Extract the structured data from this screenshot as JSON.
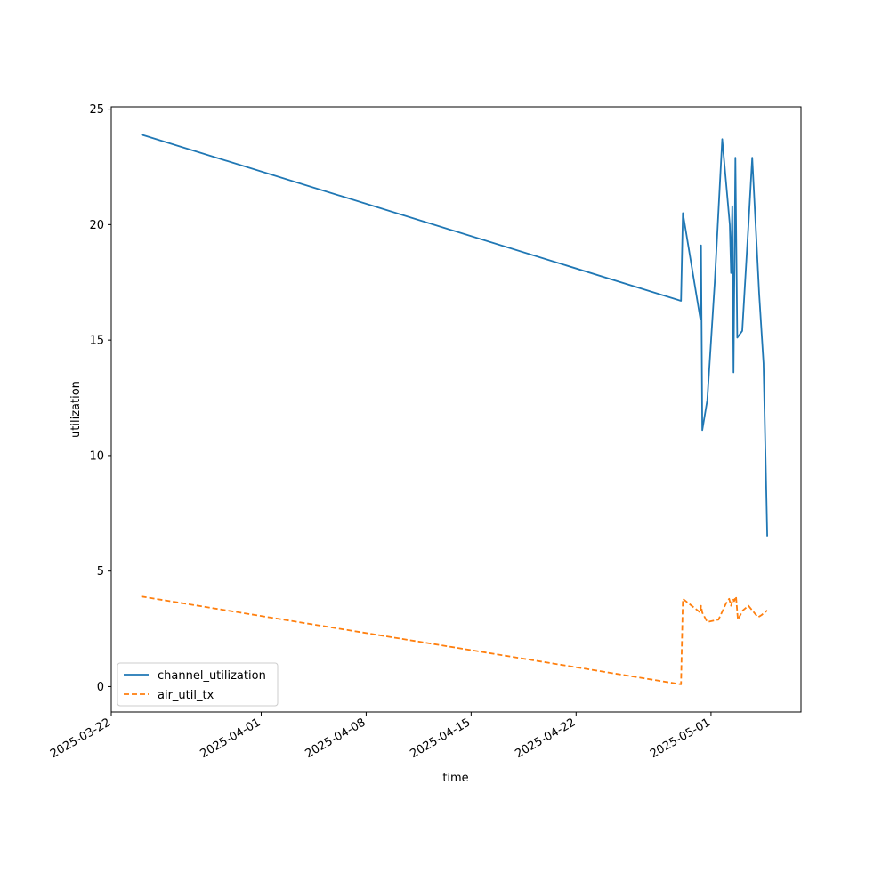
{
  "chart_data": {
    "type": "line",
    "xlabel": "time",
    "ylabel": "utilization",
    "xlim": [
      "2025-03-22T00:00",
      "2025-05-07T00:00"
    ],
    "ylim": [
      -1.1,
      25.1
    ],
    "x_ticks": [
      "2025-03-22",
      "2025-04-01",
      "2025-04-08",
      "2025-04-15",
      "2025-04-22",
      "2025-05-01"
    ],
    "y_ticks": [
      0,
      5,
      10,
      15,
      20,
      25
    ],
    "grid": false,
    "legend_position": "lower-left",
    "series": [
      {
        "name": "channel_utilization",
        "color": "#1f77b4",
        "line_style": "solid",
        "points": [
          [
            "2025-03-24T00:00",
            23.9
          ],
          [
            "2025-04-29T00:00",
            16.7
          ],
          [
            "2025-04-29T03:00",
            20.5
          ],
          [
            "2025-04-30T07:00",
            15.9
          ],
          [
            "2025-04-30T08:00",
            19.1
          ],
          [
            "2025-04-30T10:00",
            11.1
          ],
          [
            "2025-04-30T18:00",
            12.4
          ],
          [
            "2025-05-01T06:00",
            17.5
          ],
          [
            "2025-05-01T18:00",
            23.7
          ],
          [
            "2025-05-02T06:00",
            20.0
          ],
          [
            "2025-05-02T08:00",
            17.9
          ],
          [
            "2025-05-02T10:00",
            20.8
          ],
          [
            "2025-05-02T12:00",
            13.6
          ],
          [
            "2025-05-02T15:00",
            22.9
          ],
          [
            "2025-05-02T18:00",
            15.1
          ],
          [
            "2025-05-03T02:00",
            15.4
          ],
          [
            "2025-05-03T12:00",
            20.0
          ],
          [
            "2025-05-03T18:00",
            22.9
          ],
          [
            "2025-05-04T05:00",
            17.0
          ],
          [
            "2025-05-04T12:00",
            14.0
          ],
          [
            "2025-05-04T18:00",
            6.5
          ]
        ]
      },
      {
        "name": "air_util_tx",
        "color": "#ff7f0e",
        "line_style": "dashed",
        "points": [
          [
            "2025-03-24T00:00",
            3.9
          ],
          [
            "2025-04-29T00:00",
            0.1
          ],
          [
            "2025-04-29T03:00",
            3.8
          ],
          [
            "2025-04-30T07:00",
            3.2
          ],
          [
            "2025-04-30T08:00",
            3.5
          ],
          [
            "2025-04-30T10:00",
            3.2
          ],
          [
            "2025-04-30T18:00",
            2.8
          ],
          [
            "2025-05-01T12:00",
            2.9
          ],
          [
            "2025-05-02T00:00",
            3.6
          ],
          [
            "2025-05-02T05:00",
            3.8
          ],
          [
            "2025-05-02T08:00",
            3.5
          ],
          [
            "2025-05-02T11:00",
            3.8
          ],
          [
            "2025-05-02T13:00",
            3.7
          ],
          [
            "2025-05-02T16:00",
            3.9
          ],
          [
            "2025-05-02T19:00",
            2.9
          ],
          [
            "2025-05-03T03:00",
            3.3
          ],
          [
            "2025-05-03T12:00",
            3.5
          ],
          [
            "2025-05-04T03:00",
            3.0
          ],
          [
            "2025-05-04T09:00",
            3.1
          ],
          [
            "2025-05-04T18:00",
            3.3
          ]
        ]
      }
    ]
  }
}
